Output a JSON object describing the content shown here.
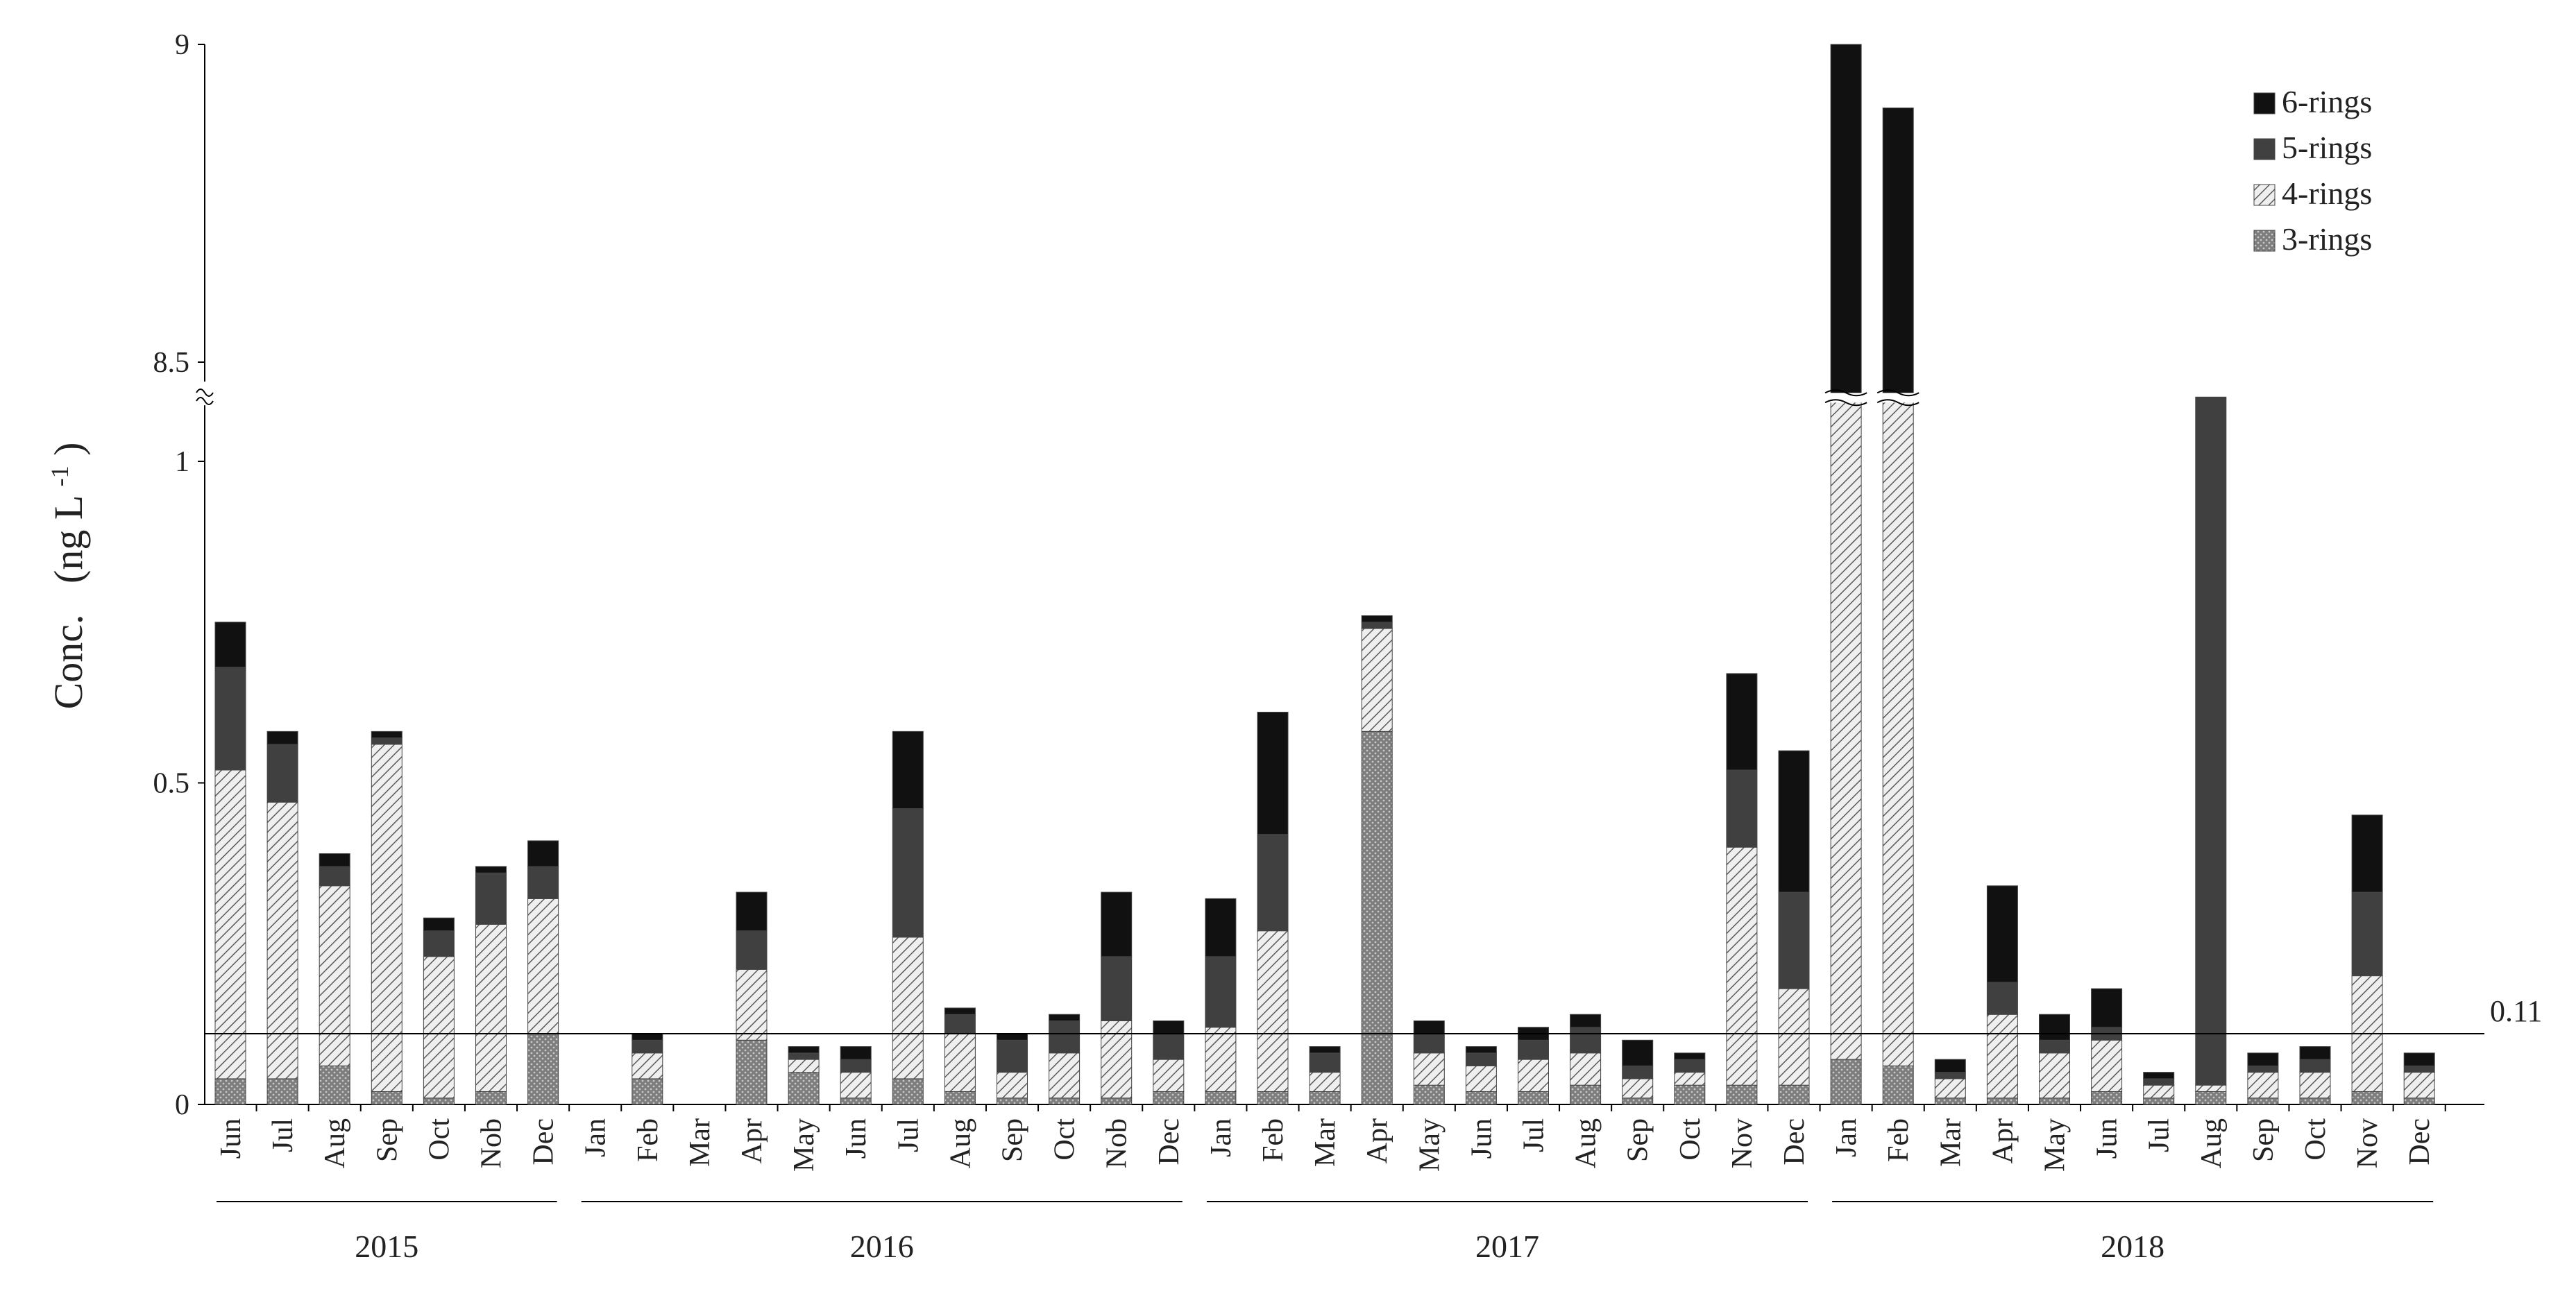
{
  "chart_data": {
    "type": "bar",
    "stacked": true,
    "ylabel": "Conc.",
    "ylabel_unit": "(ng L",
    "ylabel_unit_sup": "-1",
    "ylabel_unit_close": ")",
    "yticks": [
      {
        "label": "0",
        "value": 0
      },
      {
        "label": "0.5",
        "value": 0.5
      },
      {
        "label": "1",
        "value": 1
      },
      {
        "label": "8.5",
        "value": 8.5
      },
      {
        "label": "9",
        "value": 9
      }
    ],
    "y_axis_break": [
      1.1,
      8.5
    ],
    "ylim_lower": [
      0,
      1.1
    ],
    "ylim_upper": [
      8.5,
      9
    ],
    "reference_line": {
      "value": 0.11,
      "label": "0.11"
    },
    "legend_position": "top-right",
    "grid": false,
    "categories": [
      "Jun",
      "Jul",
      "Aug",
      "Sep",
      "Oct",
      "Nob",
      "Dec",
      "Jan",
      "Feb",
      "Mar",
      "Apr",
      "May",
      "Jun",
      "Jul",
      "Aug",
      "Sep",
      "Oct",
      "Nob",
      "Dec",
      "Jan",
      "Feb",
      "Mar",
      "Apr",
      "May",
      "Jun",
      "Jul",
      "Aug",
      "Sep",
      "Oct",
      "Nov",
      "Dec",
      "Jan",
      "Feb",
      "Mar",
      "Apr",
      "May",
      "Jun",
      "Jul",
      "Aug",
      "Sep",
      "Oct",
      "Nov",
      "Dec"
    ],
    "year_groups": [
      {
        "label": "2015",
        "start": 0,
        "end": 6
      },
      {
        "label": "2016",
        "start": 7,
        "end": 18
      },
      {
        "label": "2017",
        "start": 19,
        "end": 30
      },
      {
        "label": "2018",
        "start": 31,
        "end": 42
      }
    ],
    "series": [
      {
        "name": "3-rings",
        "color": "#8c8c8c",
        "pattern": "dots",
        "values": [
          0.04,
          0.04,
          0.06,
          0.02,
          0.01,
          0.02,
          0.11,
          0,
          0.04,
          0,
          0.1,
          0.05,
          0.01,
          0.04,
          0.02,
          0.01,
          0.01,
          0.01,
          0.02,
          0.02,
          0.02,
          0.02,
          0.58,
          0.03,
          0.02,
          0.02,
          0.03,
          0.01,
          0.03,
          0.03,
          0.03,
          0.07,
          0.06,
          0.01,
          0.01,
          0.01,
          0.02,
          0.01,
          0.02,
          0.01,
          0.01,
          0.02,
          0.01
        ]
      },
      {
        "name": "4-rings",
        "color": "#d9d9d9",
        "pattern": "hatch",
        "values": [
          0.48,
          0.43,
          0.28,
          0.54,
          0.22,
          0.26,
          0.21,
          0,
          0.04,
          0,
          0.11,
          0.02,
          0.04,
          0.22,
          0.09,
          0.04,
          0.07,
          0.12,
          0.05,
          0.1,
          0.25,
          0.03,
          0.16,
          0.05,
          0.04,
          0.05,
          0.05,
          0.03,
          0.02,
          0.37,
          0.15,
          1.08,
          1.09,
          0.03,
          0.13,
          0.07,
          0.08,
          0.02,
          0.01,
          0.04,
          0.04,
          0.18,
          0.04
        ]
      },
      {
        "name": "5-rings",
        "color": "#404040",
        "pattern": "solid",
        "values": [
          0.16,
          0.09,
          0.03,
          0.01,
          0.04,
          0.08,
          0.05,
          0,
          0.02,
          0,
          0.06,
          0.01,
          0.02,
          0.2,
          0.03,
          0.05,
          0.05,
          0.1,
          0.04,
          0.11,
          0.15,
          0.03,
          0.01,
          0.03,
          0.02,
          0.03,
          0.04,
          0.02,
          0.02,
          0.12,
          0.15,
          0,
          0,
          0.01,
          0.05,
          0.02,
          0.02,
          0.01,
          1.1,
          0.01,
          0.02,
          0.13,
          0.01
        ]
      },
      {
        "name": "6-rings",
        "color": "#111111",
        "pattern": "solid",
        "values": [
          0.07,
          0.02,
          0.02,
          0.01,
          0.02,
          0.01,
          0.04,
          0,
          0.01,
          0,
          0.06,
          0.01,
          0.02,
          0.12,
          0.01,
          0.01,
          0.01,
          0.1,
          0.02,
          0.09,
          0.19,
          0.01,
          0.01,
          0.02,
          0.01,
          0.02,
          0.02,
          0.04,
          0.01,
          0.15,
          0.22,
          7.85,
          7.75,
          0.02,
          0.15,
          0.04,
          0.06,
          0.01,
          0,
          0.02,
          0.02,
          0.12,
          0.02
        ]
      }
    ]
  }
}
